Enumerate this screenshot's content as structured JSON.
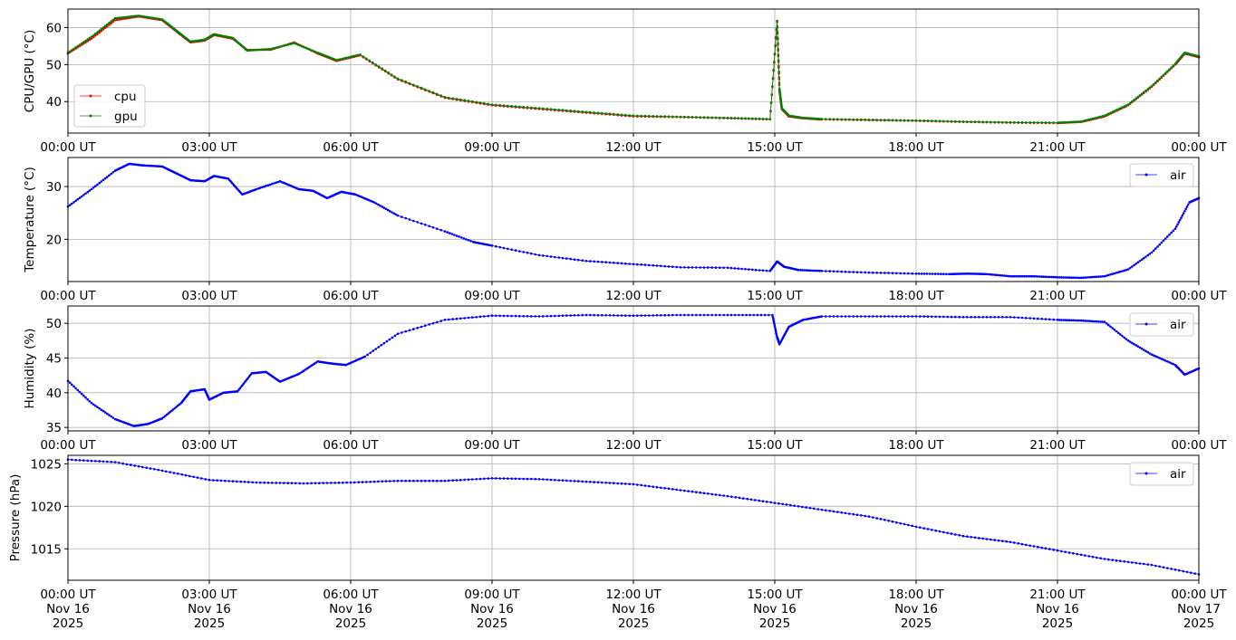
{
  "chart_data": [
    {
      "type": "line",
      "ylabel": "CPU/GPU (°C)",
      "xlabel": "",
      "ylim": [
        31.5,
        65
      ],
      "yticks": [
        40,
        50,
        60
      ],
      "grid": true,
      "legend": "lower-left",
      "x_domain": [
        "00:00",
        "24:00"
      ],
      "x_ticks": [
        "00:00 UT",
        "03:00 UT",
        "06:00 UT",
        "09:00 UT",
        "12:00 UT",
        "15:00 UT",
        "18:00 UT",
        "21:00 UT",
        "00:00 UT"
      ],
      "series": [
        {
          "name": "cpu",
          "color": "#ff0000",
          "hours": [
            0,
            0.5,
            1.0,
            1.5,
            2.0,
            2.3,
            2.6,
            2.9,
            3.1,
            3.5,
            3.8,
            4.3,
            4.8,
            5.3,
            5.7,
            6.2,
            7.0,
            8.0,
            9.0,
            10.0,
            11.0,
            12.0,
            13.0,
            14.0,
            14.9,
            15.05,
            15.1,
            15.15,
            15.3,
            15.6,
            16.0,
            17.0,
            18.0,
            19.0,
            20.0,
            21.0,
            21.5,
            22.0,
            22.5,
            23.0,
            23.5,
            23.7,
            24.0
          ],
          "values": [
            53,
            57,
            62,
            63,
            62,
            59,
            56,
            56.5,
            58,
            57,
            54,
            54,
            56,
            53,
            51,
            52.5,
            46,
            41,
            39,
            38,
            37,
            36,
            35.8,
            35.5,
            35.2,
            61.5,
            43,
            38,
            36,
            35.5,
            35.2,
            35,
            34.8,
            34.5,
            34.3,
            34.2,
            34.5,
            36,
            39,
            44,
            50,
            53,
            52
          ]
        },
        {
          "name": "gpu",
          "color": "#008000",
          "hours": [
            0,
            0.5,
            1.0,
            1.5,
            2.0,
            2.3,
            2.6,
            2.9,
            3.1,
            3.5,
            3.8,
            4.3,
            4.8,
            5.3,
            5.7,
            6.2,
            7.0,
            8.0,
            9.0,
            10.0,
            11.0,
            12.0,
            13.0,
            14.0,
            14.9,
            15.05,
            15.1,
            15.15,
            15.3,
            15.6,
            16.0,
            17.0,
            18.0,
            19.0,
            20.0,
            21.0,
            21.5,
            22.0,
            22.5,
            23.0,
            23.5,
            23.7,
            24.0
          ],
          "values": [
            53.2,
            57.5,
            62.5,
            63.2,
            62.2,
            59.2,
            56.2,
            56.7,
            58.2,
            57.2,
            53.8,
            54.2,
            55.8,
            53.2,
            51.2,
            52.7,
            46.2,
            41.2,
            39.2,
            38.2,
            37.2,
            36.2,
            35.9,
            35.6,
            35.3,
            61.8,
            43.5,
            38.2,
            36.2,
            35.6,
            35.3,
            35.1,
            34.9,
            34.6,
            34.4,
            34.3,
            34.6,
            36.2,
            39.2,
            44.2,
            50.2,
            53.2,
            52.2
          ]
        }
      ]
    },
    {
      "type": "line",
      "ylabel": "Temperature (°C)",
      "xlabel": "",
      "ylim": [
        12,
        35.5
      ],
      "yticks": [
        20,
        30
      ],
      "grid": true,
      "legend": "top-right",
      "x_domain": [
        "00:00",
        "24:00"
      ],
      "x_ticks": [
        "00:00 UT",
        "03:00 UT",
        "06:00 UT",
        "09:00 UT",
        "12:00 UT",
        "15:00 UT",
        "18:00 UT",
        "21:00 UT",
        "00:00 UT"
      ],
      "series": [
        {
          "name": "air",
          "color": "#0000ff",
          "hours": [
            0,
            0.5,
            1.0,
            1.3,
            1.6,
            2.0,
            2.3,
            2.6,
            2.9,
            3.1,
            3.4,
            3.7,
            4.0,
            4.5,
            4.9,
            5.2,
            5.5,
            5.8,
            6.1,
            6.5,
            7.0,
            8.0,
            8.6,
            9.0,
            10.0,
            11.0,
            12.0,
            13.0,
            14.0,
            14.9,
            15.05,
            15.2,
            15.5,
            16.0,
            17.0,
            18.0,
            18.7,
            19.1,
            19.5,
            20.0,
            20.5,
            21.0,
            21.5,
            22.0,
            22.5,
            23.0,
            23.5,
            23.8,
            24.0
          ],
          "values": [
            26.2,
            29.5,
            33,
            34.3,
            34,
            33.8,
            32.5,
            31.2,
            31,
            32,
            31.5,
            28.5,
            29.5,
            31,
            29.5,
            29.2,
            27.8,
            29,
            28.5,
            27,
            24.5,
            21.5,
            19.5,
            18.8,
            17,
            15.9,
            15.3,
            14.7,
            14.6,
            14,
            15.8,
            14.8,
            14.2,
            14,
            13.7,
            13.5,
            13.4,
            13.5,
            13.4,
            13,
            13,
            12.8,
            12.7,
            13,
            14.3,
            17.5,
            22,
            27,
            27.8
          ]
        }
      ]
    },
    {
      "type": "line",
      "ylabel": "Humidity (%)",
      "xlabel": "",
      "ylim": [
        34.5,
        52.5
      ],
      "yticks": [
        35,
        40,
        45,
        50
      ],
      "grid": true,
      "legend": "top-right",
      "x_domain": [
        "00:00",
        "24:00"
      ],
      "x_ticks": [
        "00:00 UT",
        "03:00 UT",
        "06:00 UT",
        "09:00 UT",
        "12:00 UT",
        "15:00 UT",
        "18:00 UT",
        "21:00 UT",
        "00:00 UT"
      ],
      "series": [
        {
          "name": "air",
          "color": "#0000ff",
          "hours": [
            0,
            0.5,
            1.0,
            1.4,
            1.7,
            2.0,
            2.4,
            2.6,
            2.9,
            3.0,
            3.3,
            3.6,
            3.9,
            4.2,
            4.5,
            4.9,
            5.3,
            5.6,
            5.9,
            6.3,
            7.0,
            8.0,
            9.0,
            10.0,
            11.0,
            12.0,
            13.0,
            14.0,
            14.95,
            15.05,
            15.1,
            15.3,
            15.6,
            16.0,
            17.0,
            18.0,
            19.0,
            20.0,
            21.0,
            21.5,
            22.0,
            22.5,
            23.0,
            23.5,
            23.7,
            24.0
          ],
          "values": [
            41.7,
            38.5,
            36.2,
            35.2,
            35.5,
            36.3,
            38.5,
            40.2,
            40.5,
            39,
            40,
            40.2,
            42.8,
            43,
            41.6,
            42.7,
            44.5,
            44.2,
            44,
            45.2,
            48.5,
            50.5,
            51.1,
            51,
            51.2,
            51.1,
            51.2,
            51.2,
            51.2,
            48,
            47,
            49.5,
            50.5,
            51,
            51,
            51,
            50.9,
            50.9,
            50.5,
            50.4,
            50.2,
            47.5,
            45.5,
            44,
            42.6,
            43.5
          ]
        }
      ]
    },
    {
      "type": "line",
      "ylabel": "Pressure (hPa)",
      "xlabel": "",
      "ylim": [
        1011.3,
        1026
      ],
      "yticks": [
        1015,
        1020,
        1025
      ],
      "grid": true,
      "legend": "top-right",
      "x_domain": [
        "2025-11-16 00:00",
        "2025-11-17 00:00"
      ],
      "x_ticks": [
        "00:00 UT\nNov 16\n2025",
        "03:00 UT\nNov 16\n2025",
        "06:00 UT\nNov 16\n2025",
        "09:00 UT\nNov 16\n2025",
        "12:00 UT\nNov 16\n2025",
        "15:00 UT\nNov 16\n2025",
        "18:00 UT\nNov 16\n2025",
        "21:00 UT\nNov 16\n2025",
        "00:00 UT\nNov 17\n2025"
      ],
      "series": [
        {
          "name": "air",
          "color": "#0000ff",
          "hours": [
            0,
            1.0,
            2.0,
            3.0,
            4.0,
            5.0,
            6.0,
            7.0,
            8.0,
            9.0,
            10.0,
            11.0,
            12.0,
            13.0,
            14.0,
            15.0,
            16.0,
            17.0,
            18.0,
            19.0,
            20.0,
            21.0,
            22.0,
            23.0,
            24.0
          ],
          "values": [
            1025.5,
            1025.2,
            1024.2,
            1023.1,
            1022.8,
            1022.7,
            1022.8,
            1023,
            1023,
            1023.3,
            1023.2,
            1022.9,
            1022.6,
            1021.9,
            1021.2,
            1020.4,
            1019.6,
            1018.8,
            1017.6,
            1016.5,
            1015.8,
            1014.8,
            1013.8,
            1013.1,
            1012
          ]
        }
      ]
    }
  ]
}
